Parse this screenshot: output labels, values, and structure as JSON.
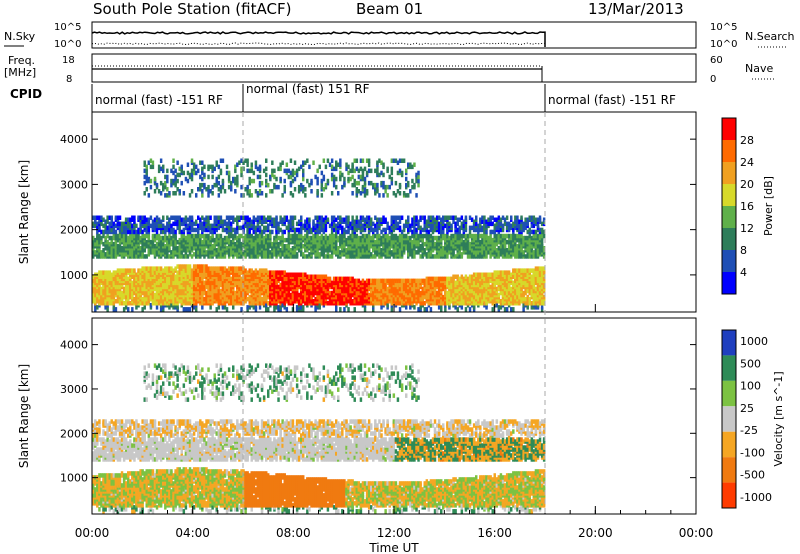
{
  "header": {
    "station": "South Pole Station (fitACF)",
    "beam": "Beam 01",
    "date": "13/Mar/2013"
  },
  "noise_panel": {
    "left_label": "N.Sky",
    "right_label": "N.Search",
    "left_ticks": [
      "10^5",
      "10^0"
    ],
    "right_ticks": [
      "10^5",
      "10^0"
    ]
  },
  "freq_panel": {
    "left_label_1": "Freq.",
    "left_label_2": "[MHz]",
    "right_label": "Nave",
    "left_ticks": [
      "18",
      "8"
    ],
    "right_ticks": [
      "60",
      "0"
    ]
  },
  "cpid": {
    "label": "CPID",
    "segments": [
      {
        "text": "normal (fast) -151 RF",
        "start_h": 0,
        "end_h": 6
      },
      {
        "text": "normal (fast) 151 RF",
        "start_h": 6,
        "end_h": 18
      },
      {
        "text": "normal (fast) -151 RF",
        "start_h": 18,
        "end_h": 24
      }
    ]
  },
  "chart_data": [
    {
      "type": "heatmap",
      "title": "",
      "ylabel": "Slant Range [km]",
      "xlabel": "",
      "xlim": [
        0,
        24
      ],
      "ylim": [
        180,
        4600
      ],
      "yticks": [
        "1000",
        "2000",
        "3000",
        "4000"
      ],
      "colorbar": {
        "label": "Power [dB]",
        "ticks": [
          "4",
          "8",
          "12",
          "16",
          "20",
          "24",
          "28"
        ],
        "colors": [
          "#0000ff",
          "#1f4fb5",
          "#2e7d5a",
          "#5fb04a",
          "#d7d92a",
          "#f0a020",
          "#ff6a00",
          "#ff0000"
        ]
      },
      "bands": [
        {
          "range_km": [
            400,
            1100
          ],
          "hours": [
            0,
            18
          ],
          "dominant_power_db": 26
        },
        {
          "range_km": [
            1400,
            1800
          ],
          "hours": [
            0,
            18
          ],
          "dominant_power_db": 12
        },
        {
          "range_km": [
            1900,
            2200
          ],
          "hours": [
            0,
            18
          ],
          "dominant_power_db": 6
        },
        {
          "range_km": [
            2700,
            3500
          ],
          "hours": [
            2,
            12
          ],
          "dominant_power_db": 8
        }
      ]
    },
    {
      "type": "heatmap",
      "title": "",
      "ylabel": "Slant Range [km]",
      "xlabel": "Time UT",
      "xlim": [
        0,
        24
      ],
      "ylim": [
        180,
        4600
      ],
      "yticks": [
        "1000",
        "2000",
        "3000",
        "4000"
      ],
      "xticks": [
        "00:00",
        "04:00",
        "08:00",
        "12:00",
        "16:00",
        "20:00",
        "00:00"
      ],
      "colorbar": {
        "label": "Velocity [m s^-1]",
        "ticks": [
          "1000",
          "500",
          "100",
          "25",
          "-25",
          "-100",
          "-500",
          "-1000"
        ],
        "colors": [
          "#1f3fbf",
          "#2e8b57",
          "#7cc242",
          "#c8c8c8",
          "#f5a623",
          "#f07a10",
          "#ff3b00"
        ]
      },
      "bands": [
        {
          "range_km": [
            400,
            1100
          ],
          "hours": [
            0,
            18
          ],
          "dominant_velocity_ms": -100
        },
        {
          "range_km": [
            1400,
            1800
          ],
          "hours": [
            0,
            12
          ],
          "dominant_velocity_ms": 0
        },
        {
          "range_km": [
            1900,
            2200
          ],
          "hours": [
            0,
            18
          ],
          "dominant_velocity_ms": 0
        }
      ]
    }
  ],
  "colors": {
    "axes": "#000000",
    "dashed_guides": "#aaaaaa"
  }
}
